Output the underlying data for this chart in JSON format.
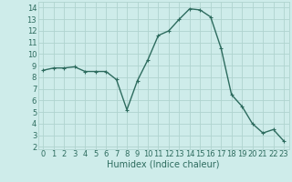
{
  "x": [
    0,
    1,
    2,
    3,
    4,
    5,
    6,
    7,
    8,
    9,
    10,
    11,
    12,
    13,
    14,
    15,
    16,
    17,
    18,
    19,
    20,
    21,
    22,
    23
  ],
  "y": [
    8.6,
    8.8,
    8.8,
    8.9,
    8.5,
    8.5,
    8.5,
    7.8,
    5.2,
    7.7,
    9.5,
    11.6,
    12.0,
    13.0,
    13.9,
    13.8,
    13.2,
    10.5,
    6.5,
    5.5,
    4.0,
    3.2,
    3.5,
    2.5
  ],
  "line_color": "#2d6b5e",
  "marker": "+",
  "marker_size": 3,
  "marker_linewidth": 0.8,
  "background_color": "#ceecea",
  "grid_color": "#b0d4cf",
  "xlabel": "Humidex (Indice chaleur)",
  "xlim": [
    -0.5,
    23.5
  ],
  "ylim": [
    1.8,
    14.5
  ],
  "yticks": [
    2,
    3,
    4,
    5,
    6,
    7,
    8,
    9,
    10,
    11,
    12,
    13,
    14
  ],
  "xtick_labels": [
    "0",
    "1",
    "2",
    "3",
    "4",
    "5",
    "6",
    "7",
    "8",
    "9",
    "10",
    "11",
    "12",
    "13",
    "14",
    "15",
    "16",
    "17",
    "18",
    "19",
    "20",
    "21",
    "22",
    "23"
  ],
  "tick_color": "#2d6b5e",
  "label_fontsize": 6,
  "xlabel_fontsize": 7,
  "linewidth": 1.0
}
